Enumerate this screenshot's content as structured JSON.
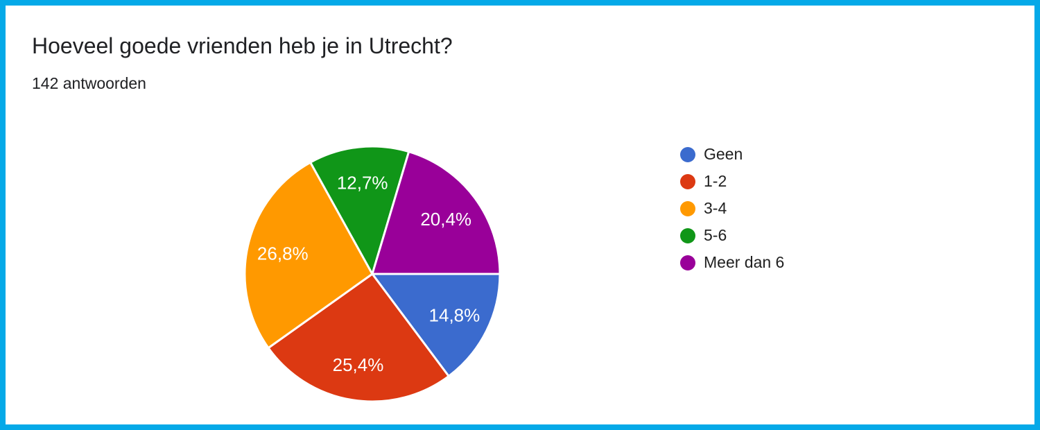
{
  "page": {
    "frame_color": "#05a9e8",
    "background_color": "#ffffff"
  },
  "chart_data": {
    "type": "pie",
    "title": "Hoeveel goede vrienden heb je in Utrecht?",
    "subtitle": "142 antwoorden",
    "legend_position": "right",
    "start_angle": "east-clockwise",
    "slice_label_color": "#ffffff",
    "text_color": "#202124",
    "slices": [
      {
        "label": "Geen",
        "value": 14.8,
        "display": "14,8%",
        "color": "#3b6bce"
      },
      {
        "label": "1-2",
        "value": 25.4,
        "display": "25,4%",
        "color": "#dc3912"
      },
      {
        "label": "3-4",
        "value": 26.8,
        "display": "26,8%",
        "color": "#ff9900"
      },
      {
        "label": "5-6",
        "value": 12.7,
        "display": "12,7%",
        "color": "#109618"
      },
      {
        "label": "Meer dan 6",
        "value": 20.4,
        "display": "20,4%",
        "color": "#990099"
      }
    ]
  }
}
